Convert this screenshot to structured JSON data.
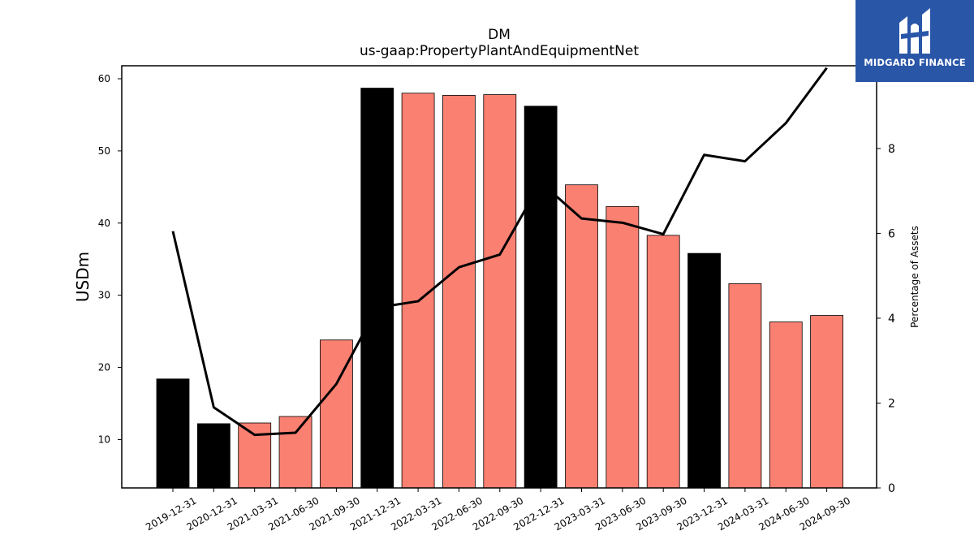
{
  "chart_data": {
    "type": "bar",
    "title": "DM",
    "subtitle": "us-gaap:PropertyPlantAndEquipmentNet",
    "ylabel": "USDm",
    "y2label": "Percentage of Assets",
    "ylim": [
      3.3,
      61.8
    ],
    "y2lim": [
      0,
      9.95
    ],
    "yticks": [
      10,
      20,
      30,
      40,
      50,
      60
    ],
    "y2ticks": [
      0,
      2,
      4,
      6,
      8
    ],
    "categories": [
      "2019-12-31",
      "2020-12-31",
      "2021-03-31",
      "2021-06-30",
      "2021-09-30",
      "2021-12-31",
      "2022-03-31",
      "2022-06-30",
      "2022-09-30",
      "2022-12-31",
      "2023-03-31",
      "2023-06-30",
      "2023-09-30",
      "2023-12-31",
      "2024-03-31",
      "2024-06-30",
      "2024-09-30"
    ],
    "series": [
      {
        "type": "bar",
        "values": [
          18.4,
          12.2,
          12.3,
          13.2,
          23.8,
          58.7,
          58.0,
          57.7,
          57.8,
          56.2,
          45.3,
          42.3,
          38.3,
          35.8,
          31.6,
          26.3,
          27.2
        ],
        "colors": [
          "#000000",
          "#000000",
          "#fa8072",
          "#fa8072",
          "#fa8072",
          "#000000",
          "#fa8072",
          "#fa8072",
          "#fa8072",
          "#000000",
          "#fa8072",
          "#fa8072",
          "#fa8072",
          "#000000",
          "#fa8072",
          "#fa8072",
          "#fa8072"
        ]
      },
      {
        "type": "line",
        "axis": "right",
        "values": [
          6.05,
          1.9,
          1.25,
          1.3,
          2.45,
          4.25,
          4.4,
          5.2,
          5.5,
          7.2,
          6.35,
          6.25,
          5.98,
          7.85,
          7.7,
          8.6,
          9.9
        ],
        "color": "#000000"
      }
    ]
  },
  "logo": {
    "text": "MIDGARD FINANCE",
    "color": "#2a56a8"
  }
}
